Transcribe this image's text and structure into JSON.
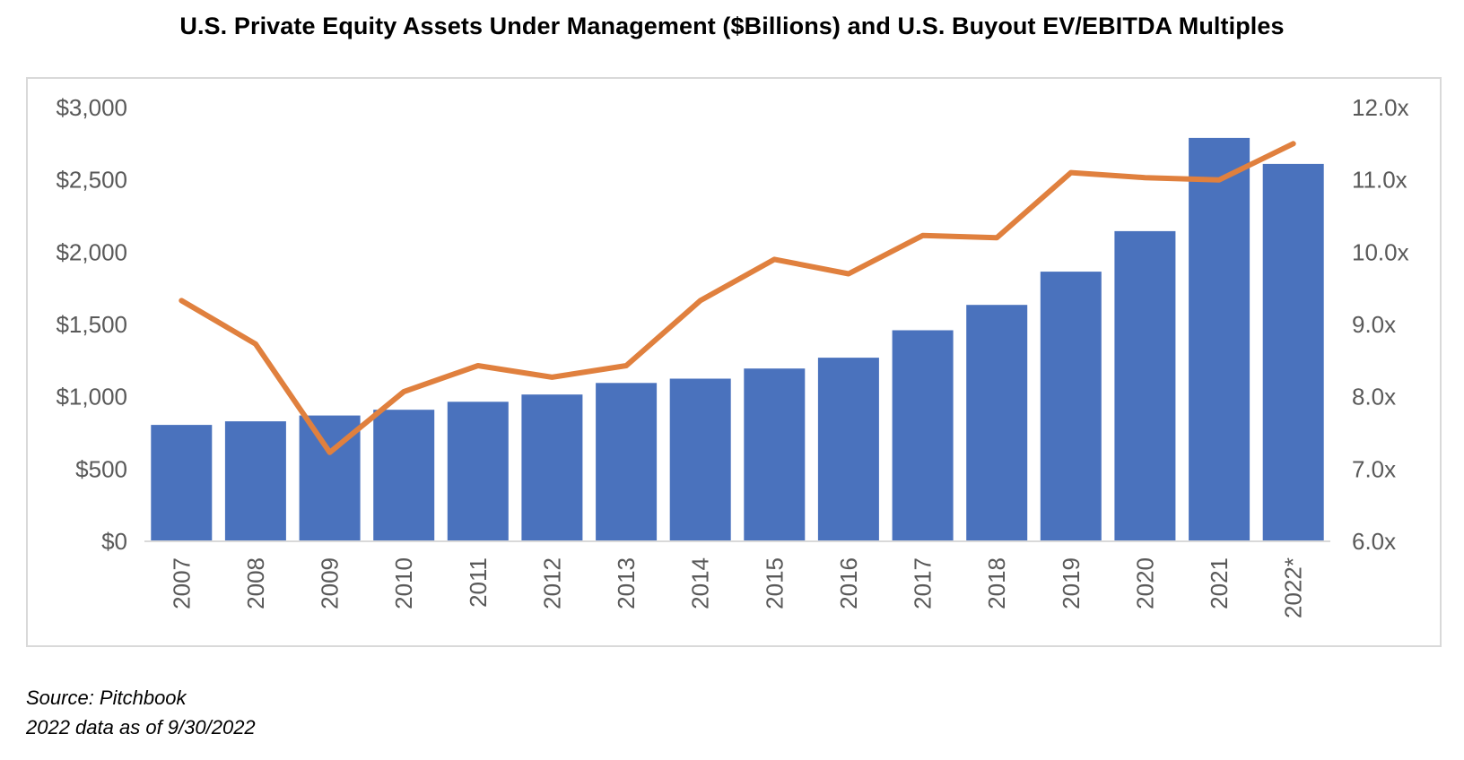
{
  "chart_data": {
    "type": "bar+line",
    "title": "U.S. Private Equity Assets Under Management ($Billions) and U.S. Buyout EV/EBITDA Multiples",
    "categories": [
      "2007",
      "2008",
      "2009",
      "2010",
      "2011",
      "2012",
      "2013",
      "2014",
      "2015",
      "2016",
      "2017",
      "2018",
      "2019",
      "2020",
      "2021",
      "2022*"
    ],
    "series": [
      {
        "type": "bar",
        "axis": "left",
        "color": "#4a72bd",
        "values": [
          805,
          830,
          870,
          910,
          965,
          1015,
          1095,
          1125,
          1195,
          1270,
          1460,
          1635,
          1865,
          2145,
          2790,
          2610
        ]
      },
      {
        "type": "line",
        "axis": "right",
        "color": "#e0803e",
        "values": [
          9.33,
          8.73,
          7.23,
          8.07,
          8.43,
          8.27,
          8.43,
          9.33,
          9.9,
          9.7,
          10.23,
          10.2,
          11.1,
          11.03,
          11.0,
          11.5
        ]
      }
    ],
    "y_left": {
      "range": [
        0,
        3000
      ],
      "ticks": [
        0,
        500,
        1000,
        1500,
        2000,
        2500,
        3000
      ],
      "tick_labels": [
        "$0",
        "$500",
        "$1,000",
        "$1,500",
        "$2,000",
        "$2,500",
        "$3,000"
      ]
    },
    "y_right": {
      "range": [
        6,
        12
      ],
      "ticks": [
        6,
        7,
        8,
        9,
        10,
        11,
        12
      ],
      "tick_labels": [
        "6.0x",
        "7.0x",
        "8.0x",
        "9.0x",
        "10.0x",
        "11.0x",
        "12.0x"
      ]
    },
    "grid": false,
    "legend": "none",
    "xlabel": "",
    "ylabel": ""
  },
  "footnotes": {
    "source": "Source: Pitchbook",
    "as_of": "2022 data as of 9/30/2022"
  }
}
